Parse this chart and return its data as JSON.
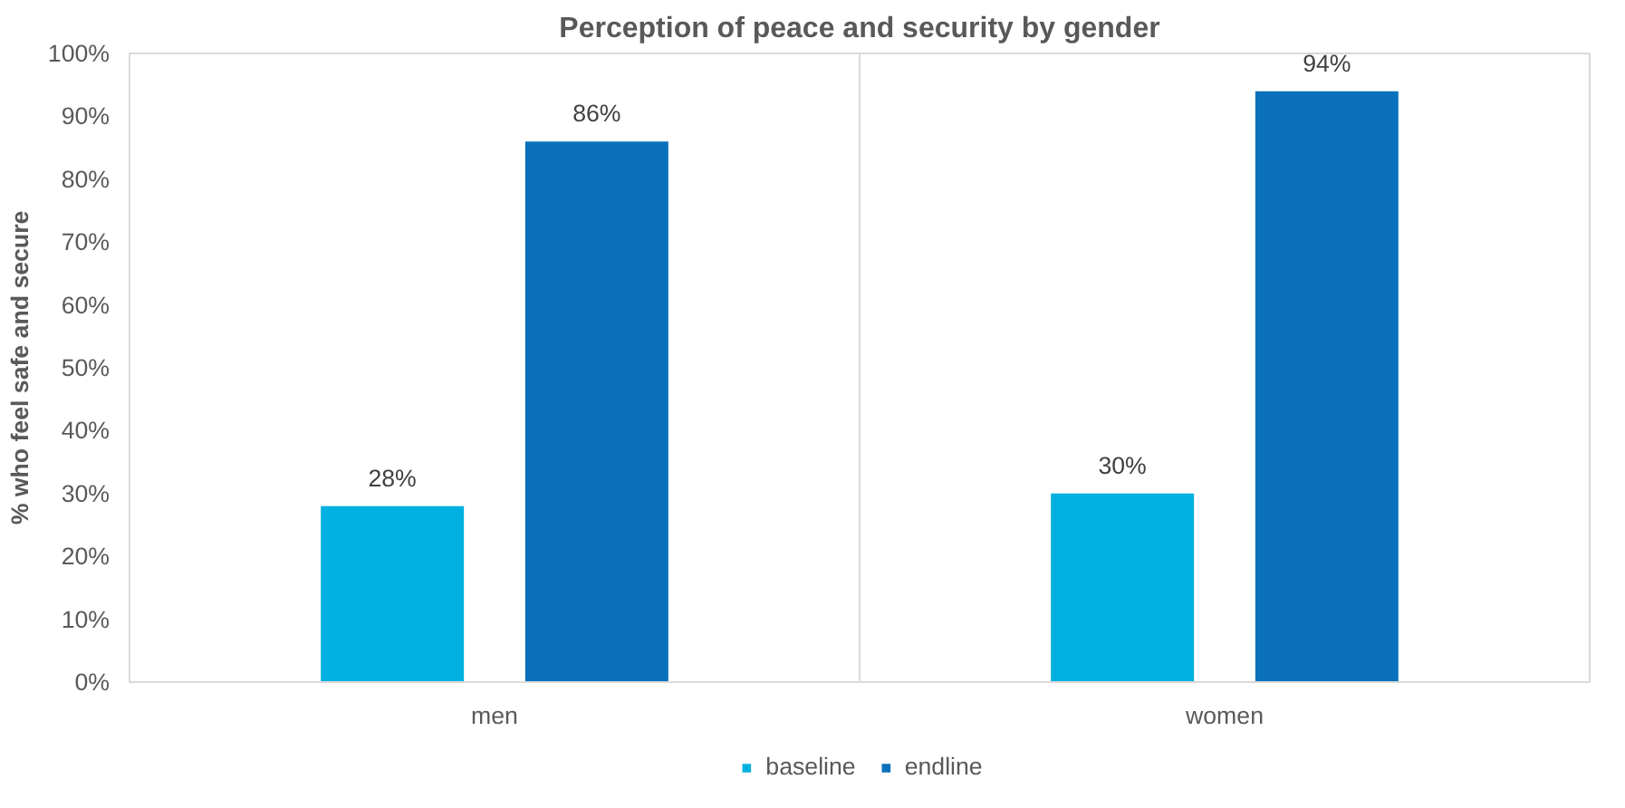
{
  "chart_data": {
    "type": "bar",
    "title": "Perception of peace and security by gender",
    "ylabel": "% who feel safe and secure",
    "categories": [
      "men",
      "women"
    ],
    "series": [
      {
        "name": "baseline",
        "color": "#00b0e0",
        "values": [
          28,
          30
        ],
        "value_labels": [
          "28%",
          "30%"
        ]
      },
      {
        "name": "endline",
        "color": "#0a70bb",
        "values": [
          86,
          94
        ],
        "value_labels": [
          "86%",
          "94%"
        ]
      }
    ],
    "ylim": [
      0,
      100
    ],
    "yticks": [
      {
        "value": 0,
        "label": "0%"
      },
      {
        "value": 10,
        "label": "10%"
      },
      {
        "value": 20,
        "label": "20%"
      },
      {
        "value": 30,
        "label": "30%"
      },
      {
        "value": 40,
        "label": "40%"
      },
      {
        "value": 50,
        "label": "50%"
      },
      {
        "value": 60,
        "label": "60%"
      },
      {
        "value": 70,
        "label": "70%"
      },
      {
        "value": 80,
        "label": "80%"
      },
      {
        "value": 90,
        "label": "90%"
      },
      {
        "value": 100,
        "label": "100%"
      }
    ],
    "legend": "bottom"
  }
}
